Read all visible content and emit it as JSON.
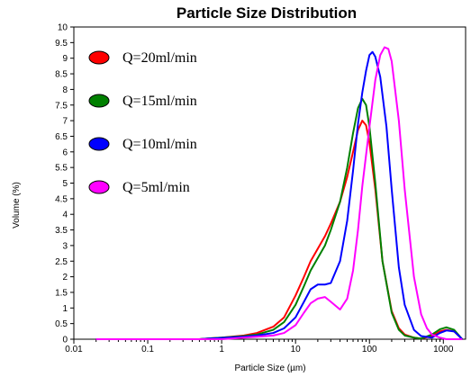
{
  "chart_data": {
    "type": "line",
    "title": "Particle Size Distribution",
    "xlabel": "Particle Size (µm)",
    "ylabel": "Volume (%)",
    "x_scale": "log",
    "xlim": [
      0.01,
      2000
    ],
    "ylim": [
      0,
      10
    ],
    "x_ticks": [
      0.01,
      0.1,
      1,
      10,
      100,
      1000
    ],
    "x_tick_labels": [
      "0.01",
      "0.1",
      "1",
      "10",
      "100",
      "1000"
    ],
    "y_ticks": [
      0,
      0.5,
      1,
      1.5,
      2,
      2.5,
      3,
      3.5,
      4,
      4.5,
      5,
      5.5,
      6,
      6.5,
      7,
      7.5,
      8,
      8.5,
      9,
      9.5,
      10
    ],
    "y_tick_labels": [
      "0",
      "0.5",
      "1",
      "1.5",
      "2",
      "2.5",
      "3",
      "3.5",
      "4",
      "4.5",
      "5",
      "5.5",
      "6",
      "6.5",
      "7",
      "7.5",
      "8",
      "8.5",
      "9",
      "9.5",
      "10"
    ],
    "grid": false,
    "legend_position": "top-left",
    "series": [
      {
        "name": "Q=20ml/min",
        "color": "#ff0000",
        "points": [
          [
            0.02,
            0
          ],
          [
            0.5,
            0
          ],
          [
            0.7,
            0.03
          ],
          [
            1,
            0.05
          ],
          [
            2,
            0.12
          ],
          [
            3,
            0.2
          ],
          [
            5,
            0.4
          ],
          [
            7,
            0.7
          ],
          [
            10,
            1.4
          ],
          [
            13,
            2.0
          ],
          [
            16,
            2.5
          ],
          [
            20,
            2.9
          ],
          [
            25,
            3.3
          ],
          [
            30,
            3.7
          ],
          [
            40,
            4.4
          ],
          [
            50,
            5.2
          ],
          [
            60,
            6.0
          ],
          [
            70,
            6.7
          ],
          [
            80,
            7.0
          ],
          [
            90,
            6.85
          ],
          [
            100,
            6.3
          ],
          [
            120,
            4.8
          ],
          [
            150,
            2.5
          ],
          [
            200,
            0.9
          ],
          [
            250,
            0.35
          ],
          [
            300,
            0.15
          ],
          [
            400,
            0.05
          ],
          [
            500,
            0.02
          ],
          [
            700,
            0.1
          ],
          [
            900,
            0.25
          ],
          [
            1100,
            0.3
          ],
          [
            1400,
            0.25
          ],
          [
            1800,
            0
          ]
        ]
      },
      {
        "name": "Q=15ml/min",
        "color": "#008000",
        "points": [
          [
            0.02,
            0
          ],
          [
            0.5,
            0
          ],
          [
            0.7,
            0.03
          ],
          [
            1,
            0.05
          ],
          [
            2,
            0.1
          ],
          [
            3,
            0.15
          ],
          [
            5,
            0.3
          ],
          [
            7,
            0.55
          ],
          [
            10,
            1.1
          ],
          [
            13,
            1.7
          ],
          [
            16,
            2.2
          ],
          [
            20,
            2.6
          ],
          [
            25,
            3.0
          ],
          [
            30,
            3.5
          ],
          [
            40,
            4.4
          ],
          [
            50,
            5.5
          ],
          [
            60,
            6.6
          ],
          [
            70,
            7.4
          ],
          [
            80,
            7.7
          ],
          [
            90,
            7.5
          ],
          [
            100,
            6.8
          ],
          [
            120,
            5.0
          ],
          [
            150,
            2.5
          ],
          [
            200,
            0.85
          ],
          [
            250,
            0.3
          ],
          [
            300,
            0.12
          ],
          [
            400,
            0.05
          ],
          [
            500,
            0.02
          ],
          [
            700,
            0.15
          ],
          [
            900,
            0.32
          ],
          [
            1100,
            0.38
          ],
          [
            1400,
            0.3
          ],
          [
            1800,
            0
          ]
        ]
      },
      {
        "name": "Q=10ml/min",
        "color": "#0000ff",
        "points": [
          [
            0.02,
            0
          ],
          [
            0.5,
            0
          ],
          [
            0.7,
            0.02
          ],
          [
            1,
            0.04
          ],
          [
            2,
            0.08
          ],
          [
            3,
            0.12
          ],
          [
            5,
            0.2
          ],
          [
            7,
            0.35
          ],
          [
            10,
            0.7
          ],
          [
            13,
            1.2
          ],
          [
            16,
            1.6
          ],
          [
            20,
            1.75
          ],
          [
            25,
            1.75
          ],
          [
            30,
            1.8
          ],
          [
            40,
            2.5
          ],
          [
            50,
            3.8
          ],
          [
            60,
            5.4
          ],
          [
            70,
            6.9
          ],
          [
            80,
            7.9
          ],
          [
            90,
            8.6
          ],
          [
            100,
            9.1
          ],
          [
            110,
            9.2
          ],
          [
            120,
            9.05
          ],
          [
            140,
            8.4
          ],
          [
            170,
            6.8
          ],
          [
            200,
            4.8
          ],
          [
            250,
            2.3
          ],
          [
            300,
            1.1
          ],
          [
            400,
            0.3
          ],
          [
            500,
            0.1
          ],
          [
            700,
            0.05
          ],
          [
            900,
            0.2
          ],
          [
            1100,
            0.28
          ],
          [
            1400,
            0.25
          ],
          [
            1800,
            0
          ]
        ]
      },
      {
        "name": "Q=5ml/min",
        "color": "#ff00ff",
        "points": [
          [
            0.02,
            0
          ],
          [
            1,
            0
          ],
          [
            2,
            0.05
          ],
          [
            3,
            0.08
          ],
          [
            5,
            0.12
          ],
          [
            7,
            0.2
          ],
          [
            10,
            0.45
          ],
          [
            13,
            0.85
          ],
          [
            16,
            1.15
          ],
          [
            20,
            1.3
          ],
          [
            25,
            1.35
          ],
          [
            30,
            1.2
          ],
          [
            40,
            0.95
          ],
          [
            50,
            1.3
          ],
          [
            60,
            2.2
          ],
          [
            70,
            3.5
          ],
          [
            80,
            4.9
          ],
          [
            100,
            6.8
          ],
          [
            120,
            8.3
          ],
          [
            140,
            9.1
          ],
          [
            160,
            9.35
          ],
          [
            180,
            9.3
          ],
          [
            200,
            8.9
          ],
          [
            250,
            7.0
          ],
          [
            300,
            4.8
          ],
          [
            400,
            2.0
          ],
          [
            500,
            0.8
          ],
          [
            600,
            0.35
          ],
          [
            700,
            0.15
          ],
          [
            900,
            0.05
          ],
          [
            1100,
            0
          ],
          [
            1800,
            0
          ]
        ]
      }
    ]
  }
}
